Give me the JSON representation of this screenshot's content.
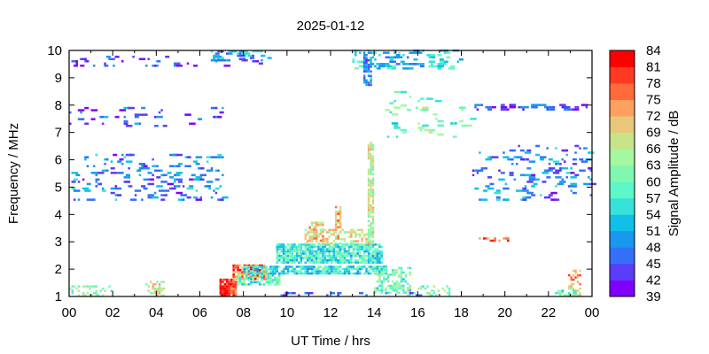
{
  "chart_data": {
    "type": "heatmap",
    "title": "2025-01-12",
    "xlabel": "UT Time / hrs",
    "ylabel": "Frequency / MHz",
    "colorbar_label": "Signal Amplitude / dB",
    "xlim": [
      0,
      24
    ],
    "ylim": [
      1,
      10
    ],
    "x_ticks": [
      "00",
      "02",
      "04",
      "06",
      "08",
      "10",
      "12",
      "14",
      "16",
      "18",
      "20",
      "22",
      "00"
    ],
    "y_ticks": [
      "1",
      "2",
      "3",
      "4",
      "5",
      "6",
      "7",
      "8",
      "9",
      "10"
    ],
    "colorbar_ticks": [
      "39",
      "42",
      "45",
      "48",
      "51",
      "54",
      "57",
      "60",
      "63",
      "66",
      "69",
      "72",
      "75",
      "78",
      "81",
      "84"
    ],
    "colorbar_range": [
      39,
      84
    ],
    "colorbar_colors": [
      "#8000ff",
      "#5b3cf8",
      "#3470f8",
      "#1898ee",
      "#10c0e6",
      "#38e2d8",
      "#5cf8c8",
      "#80f8b0",
      "#a4f8a0",
      "#c8e488",
      "#e8c878",
      "#ffa060",
      "#ff6a3a",
      "#ff3a22",
      "#ff0000"
    ],
    "grid": false,
    "legend": "right colorbar",
    "regions_note_units": "t_start_hr, t_end_hr, f_low_MHz, f_high_MHz, mean_dB, density",
    "regions": [
      [
        9.5,
        14.3,
        2.2,
        2.9,
        57,
        0.85
      ],
      [
        10.8,
        13.9,
        2.9,
        3.4,
        68,
        0.5
      ],
      [
        11.0,
        11.6,
        3.0,
        3.7,
        70,
        0.6
      ],
      [
        12.2,
        12.4,
        3.0,
        4.3,
        72,
        0.7
      ],
      [
        13.7,
        13.9,
        2.9,
        6.6,
        66,
        0.75
      ],
      [
        7.5,
        9.0,
        1.6,
        2.1,
        76,
        0.85
      ],
      [
        8.0,
        14.5,
        1.8,
        2.1,
        55,
        0.8
      ],
      [
        7.7,
        9.6,
        1.4,
        1.8,
        58,
        0.7
      ],
      [
        14.0,
        15.6,
        1.1,
        2.0,
        60,
        0.6
      ],
      [
        6.9,
        7.6,
        1.0,
        1.6,
        79,
        0.85
      ],
      [
        15.5,
        17.5,
        1.0,
        1.4,
        62,
        0.35
      ],
      [
        3.5,
        4.3,
        1.0,
        1.5,
        67,
        0.4
      ],
      [
        0.0,
        2.0,
        1.0,
        1.4,
        62,
        0.3
      ],
      [
        22.9,
        23.5,
        1.0,
        1.9,
        72,
        0.5
      ],
      [
        22.3,
        23.5,
        1.0,
        1.2,
        60,
        0.35
      ],
      [
        0.0,
        7.0,
        4.5,
        6.2,
        48,
        0.1
      ],
      [
        0.0,
        7.0,
        7.2,
        7.9,
        45,
        0.06
      ],
      [
        0.0,
        9.0,
        9.4,
        9.8,
        43,
        0.08
      ],
      [
        13.0,
        18.0,
        9.3,
        10.0,
        54,
        0.2
      ],
      [
        18.5,
        24.0,
        4.5,
        6.5,
        48,
        0.12
      ],
      [
        18.5,
        24.0,
        7.8,
        8.0,
        45,
        0.25
      ],
      [
        14.5,
        18.5,
        6.8,
        8.5,
        60,
        0.05
      ],
      [
        13.5,
        13.8,
        8.7,
        9.7,
        48,
        0.7
      ],
      [
        6.5,
        9.2,
        9.6,
        10.0,
        50,
        0.25
      ],
      [
        18.8,
        20.2,
        3.0,
        3.1,
        78,
        0.5
      ],
      [
        9.5,
        16.0,
        1.0,
        1.1,
        45,
        0.15
      ]
    ]
  }
}
